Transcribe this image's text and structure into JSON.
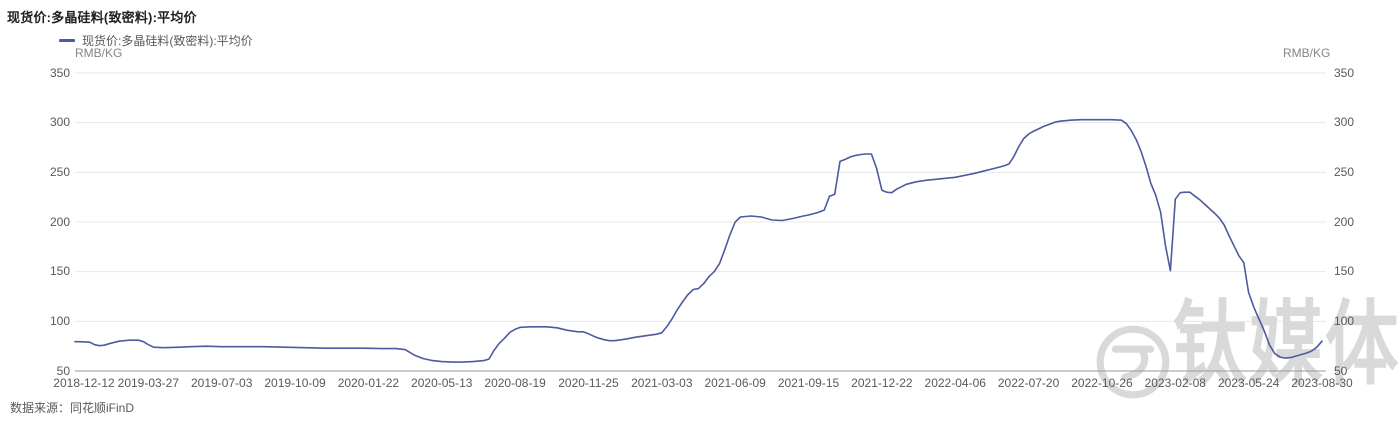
{
  "header": {
    "title": "现货价:多晶硅料(致密料):平均价"
  },
  "footer": {
    "source": "数据来源：同花顺iFinD"
  },
  "watermark": {
    "text": "钛媒体",
    "logo": "tmtpost-circle-logo",
    "color": "#d9d9d9"
  },
  "colors": {
    "line": "#4d5a9e",
    "grid": "#e8e8e8",
    "axis_line": "#999999",
    "tick_text": "#595959",
    "title_text": "#1f1f1f"
  },
  "chart_data": {
    "type": "line",
    "title": "现货价:多晶硅料(致密料):平均价",
    "xlabel": "",
    "ylabel": "RMB/KG",
    "ylim": [
      50,
      350
    ],
    "y_ticks": [
      350,
      300,
      250,
      200,
      150,
      100,
      50
    ],
    "x_ticks": [
      "2018-12-12",
      "2019-03-27",
      "2019-07-03",
      "2019-10-09",
      "2020-01-22",
      "2020-05-13",
      "2020-08-19",
      "2020-11-25",
      "2021-03-03",
      "2021-06-09",
      "2021-09-15",
      "2021-12-22",
      "2022-04-06",
      "2022-07-20",
      "2022-10-26",
      "2023-02-08",
      "2023-05-24",
      "2023-08-30"
    ],
    "grid": "horizontal",
    "legend_position": "top-left",
    "series": [
      {
        "name": "现货价:多晶硅料(致密料):平均价",
        "color": "#4d5a9e",
        "points": [
          [
            "2018-12-12",
            79.5
          ],
          [
            "2018-12-19",
            79.5
          ],
          [
            "2019-01-02",
            79
          ],
          [
            "2019-01-09",
            76.5
          ],
          [
            "2019-01-16",
            75.5
          ],
          [
            "2019-01-23",
            76
          ],
          [
            "2019-01-30",
            77.5
          ],
          [
            "2019-02-13",
            80
          ],
          [
            "2019-02-27",
            81
          ],
          [
            "2019-03-13",
            81
          ],
          [
            "2019-03-20",
            79.5
          ],
          [
            "2019-03-27",
            76.5
          ],
          [
            "2019-04-03",
            74
          ],
          [
            "2019-04-17",
            73.5
          ],
          [
            "2019-05-08",
            74
          ],
          [
            "2019-05-22",
            74.5
          ],
          [
            "2019-06-12",
            75
          ],
          [
            "2019-07-03",
            74.5
          ],
          [
            "2019-07-31",
            74.5
          ],
          [
            "2019-08-28",
            74.5
          ],
          [
            "2019-09-25",
            74
          ],
          [
            "2019-10-23",
            73.5
          ],
          [
            "2019-11-20",
            73
          ],
          [
            "2019-12-18",
            73
          ],
          [
            "2020-01-15",
            73
          ],
          [
            "2020-02-12",
            72.5
          ],
          [
            "2020-03-04",
            72.5
          ],
          [
            "2020-03-18",
            71.5
          ],
          [
            "2020-04-01",
            66
          ],
          [
            "2020-04-15",
            62.5
          ],
          [
            "2020-04-29",
            60.5
          ],
          [
            "2020-05-13",
            59.5
          ],
          [
            "2020-05-27",
            59
          ],
          [
            "2020-06-10",
            59
          ],
          [
            "2020-06-24",
            59.5
          ],
          [
            "2020-07-08",
            60.5
          ],
          [
            "2020-07-15",
            62
          ],
          [
            "2020-07-22",
            71
          ],
          [
            "2020-07-29",
            78
          ],
          [
            "2020-08-05",
            83
          ],
          [
            "2020-08-12",
            89
          ],
          [
            "2020-08-19",
            92
          ],
          [
            "2020-08-26",
            94
          ],
          [
            "2020-09-09",
            94.5
          ],
          [
            "2020-09-30",
            94.5
          ],
          [
            "2020-10-14",
            93.5
          ],
          [
            "2020-10-28",
            91
          ],
          [
            "2020-11-11",
            89.5
          ],
          [
            "2020-11-18",
            89.5
          ],
          [
            "2020-11-25",
            87.5
          ],
          [
            "2020-12-02",
            85
          ],
          [
            "2020-12-09",
            83
          ],
          [
            "2020-12-16",
            81.5
          ],
          [
            "2020-12-23",
            80.5
          ],
          [
            "2020-12-30",
            80.5
          ],
          [
            "2021-01-13",
            82
          ],
          [
            "2021-01-27",
            84
          ],
          [
            "2021-02-10",
            85.5
          ],
          [
            "2021-02-24",
            87
          ],
          [
            "2021-03-03",
            88.5
          ],
          [
            "2021-03-10",
            95
          ],
          [
            "2021-03-17",
            103
          ],
          [
            "2021-03-24",
            112
          ],
          [
            "2021-03-31",
            120
          ],
          [
            "2021-04-07",
            127
          ],
          [
            "2021-04-14",
            132
          ],
          [
            "2021-04-21",
            133
          ],
          [
            "2021-04-28",
            138
          ],
          [
            "2021-05-05",
            145
          ],
          [
            "2021-05-12",
            150
          ],
          [
            "2021-05-19",
            158
          ],
          [
            "2021-05-26",
            172
          ],
          [
            "2021-06-02",
            187
          ],
          [
            "2021-06-09",
            200
          ],
          [
            "2021-06-16",
            205
          ],
          [
            "2021-06-30",
            206
          ],
          [
            "2021-07-14",
            205
          ],
          [
            "2021-07-28",
            202
          ],
          [
            "2021-08-11",
            201.5
          ],
          [
            "2021-08-25",
            203.5
          ],
          [
            "2021-09-08",
            206
          ],
          [
            "2021-09-15",
            207
          ],
          [
            "2021-09-22",
            208.5
          ],
          [
            "2021-09-29",
            210
          ],
          [
            "2021-10-06",
            212
          ],
          [
            "2021-10-13",
            226
          ],
          [
            "2021-10-20",
            228
          ],
          [
            "2021-10-27",
            261
          ],
          [
            "2021-11-03",
            263
          ],
          [
            "2021-11-10",
            265.5
          ],
          [
            "2021-11-17",
            267
          ],
          [
            "2021-11-24",
            268
          ],
          [
            "2021-12-01",
            268.5
          ],
          [
            "2021-12-08",
            268.5
          ],
          [
            "2021-12-15",
            254
          ],
          [
            "2021-12-22",
            232
          ],
          [
            "2021-12-29",
            230
          ],
          [
            "2022-01-05",
            229.5
          ],
          [
            "2022-01-12",
            233
          ],
          [
            "2022-01-26",
            238
          ],
          [
            "2022-02-09",
            240.5
          ],
          [
            "2022-02-23",
            242
          ],
          [
            "2022-03-09",
            243
          ],
          [
            "2022-03-23",
            244
          ],
          [
            "2022-04-06",
            245
          ],
          [
            "2022-04-20",
            247
          ],
          [
            "2022-05-04",
            249
          ],
          [
            "2022-05-18",
            251.5
          ],
          [
            "2022-06-01",
            254
          ],
          [
            "2022-06-15",
            256.5
          ],
          [
            "2022-06-22",
            258.5
          ],
          [
            "2022-06-29",
            266
          ],
          [
            "2022-07-06",
            276
          ],
          [
            "2022-07-13",
            284
          ],
          [
            "2022-07-20",
            288.5
          ],
          [
            "2022-07-27",
            291.5
          ],
          [
            "2022-08-03",
            294
          ],
          [
            "2022-08-10",
            296.5
          ],
          [
            "2022-08-17",
            298.5
          ],
          [
            "2022-08-24",
            300.5
          ],
          [
            "2022-08-31",
            301.5
          ],
          [
            "2022-09-14",
            302.5
          ],
          [
            "2022-09-28",
            303
          ],
          [
            "2022-10-12",
            303
          ],
          [
            "2022-10-26",
            303
          ],
          [
            "2022-11-09",
            303
          ],
          [
            "2022-11-23",
            302.5
          ],
          [
            "2022-11-30",
            299
          ],
          [
            "2022-12-07",
            292
          ],
          [
            "2022-12-14",
            283
          ],
          [
            "2022-12-21",
            271
          ],
          [
            "2022-12-28",
            256
          ],
          [
            "2023-01-04",
            239
          ],
          [
            "2023-01-11",
            227
          ],
          [
            "2023-01-18",
            210
          ],
          [
            "2023-01-25",
            176
          ],
          [
            "2023-02-01",
            151
          ],
          [
            "2023-02-08",
            223
          ],
          [
            "2023-02-15",
            229.5
          ],
          [
            "2023-02-22",
            230
          ],
          [
            "2023-03-01",
            230
          ],
          [
            "2023-03-08",
            226
          ],
          [
            "2023-03-15",
            222.5
          ],
          [
            "2023-03-22",
            218
          ],
          [
            "2023-03-29",
            213.5
          ],
          [
            "2023-04-05",
            209
          ],
          [
            "2023-04-12",
            204
          ],
          [
            "2023-04-19",
            197
          ],
          [
            "2023-04-26",
            186
          ],
          [
            "2023-05-03",
            176
          ],
          [
            "2023-05-10",
            166
          ],
          [
            "2023-05-17",
            159
          ],
          [
            "2023-05-24",
            129
          ],
          [
            "2023-05-31",
            114
          ],
          [
            "2023-06-07",
            102
          ],
          [
            "2023-06-14",
            90
          ],
          [
            "2023-06-21",
            76
          ],
          [
            "2023-06-28",
            67.5
          ],
          [
            "2023-07-05",
            64
          ],
          [
            "2023-07-12",
            63
          ],
          [
            "2023-07-19",
            63.5
          ],
          [
            "2023-07-26",
            65
          ],
          [
            "2023-08-02",
            66.5
          ],
          [
            "2023-08-09",
            68
          ],
          [
            "2023-08-16",
            70
          ],
          [
            "2023-08-23",
            74
          ],
          [
            "2023-08-30",
            80
          ]
        ]
      }
    ]
  }
}
